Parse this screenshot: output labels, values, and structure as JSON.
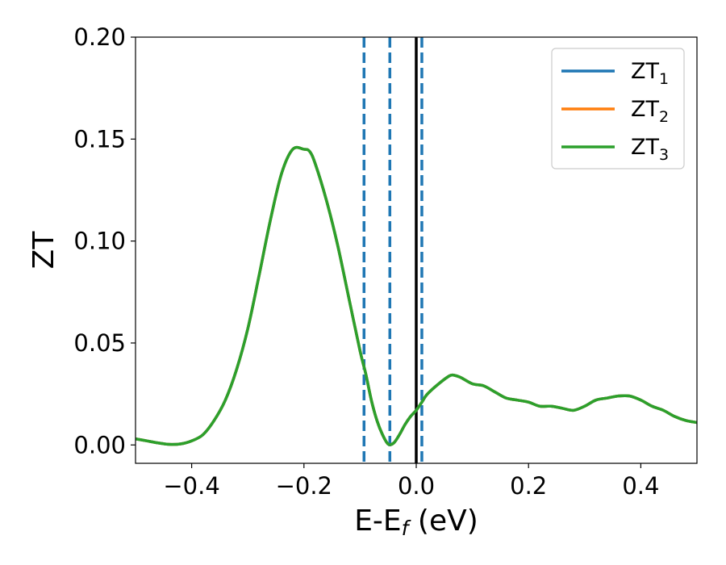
{
  "chart_data": {
    "type": "line",
    "xlabel": {
      "main": "E-E",
      "sub": "f",
      "tail": " (eV)"
    },
    "ylabel": "ZT",
    "xlim": [
      -0.5,
      0.5
    ],
    "ylim": [
      -0.009,
      0.2
    ],
    "x_ticks": [
      -0.4,
      -0.2,
      0.0,
      0.2,
      0.4
    ],
    "x_tick_labels": [
      "−0.4",
      "−0.2",
      "0.0",
      "0.2",
      "0.4"
    ],
    "y_ticks": [
      0.0,
      0.05,
      0.1,
      0.15,
      0.2
    ],
    "y_tick_labels": [
      "0.00",
      "0.05",
      "0.10",
      "0.15",
      "0.20"
    ],
    "grid": false,
    "legend_position": "top-right",
    "vlines": [
      {
        "x": -0.093,
        "style": "dashed",
        "color": "#1f77b4"
      },
      {
        "x": -0.047,
        "style": "dashed",
        "color": "#1f77b4"
      },
      {
        "x": 0.01,
        "style": "dashed",
        "color": "#1f77b4"
      },
      {
        "x": 0.0,
        "style": "solid",
        "color": "#000000"
      }
    ],
    "x": [
      -0.5,
      -0.48,
      -0.46,
      -0.44,
      -0.42,
      -0.4,
      -0.38,
      -0.36,
      -0.34,
      -0.32,
      -0.3,
      -0.28,
      -0.26,
      -0.24,
      -0.22,
      -0.2,
      -0.19,
      -0.18,
      -0.16,
      -0.14,
      -0.12,
      -0.1,
      -0.09,
      -0.08,
      -0.07,
      -0.06,
      -0.05,
      -0.04,
      -0.03,
      -0.02,
      -0.01,
      0.0,
      0.01,
      0.02,
      0.04,
      0.06,
      0.07,
      0.08,
      0.1,
      0.12,
      0.14,
      0.16,
      0.18,
      0.2,
      0.22,
      0.24,
      0.26,
      0.28,
      0.3,
      0.32,
      0.34,
      0.36,
      0.38,
      0.4,
      0.42,
      0.44,
      0.46,
      0.48,
      0.5
    ],
    "series": [
      {
        "name_main": "ZT",
        "name_sub": "1",
        "color": "#1f77b4",
        "values": [
          0.003,
          0.002,
          0.001,
          0.0003,
          0.0005,
          0.002,
          0.005,
          0.012,
          0.022,
          0.037,
          0.057,
          0.083,
          0.11,
          0.133,
          0.145,
          0.145,
          0.144,
          0.138,
          0.12,
          0.098,
          0.072,
          0.046,
          0.035,
          0.022,
          0.012,
          0.005,
          0.0004,
          0.001,
          0.005,
          0.01,
          0.014,
          0.017,
          0.021,
          0.025,
          0.03,
          0.034,
          0.034,
          0.033,
          0.03,
          0.029,
          0.026,
          0.023,
          0.022,
          0.021,
          0.019,
          0.019,
          0.018,
          0.017,
          0.019,
          0.022,
          0.023,
          0.024,
          0.024,
          0.022,
          0.019,
          0.017,
          0.014,
          0.012,
          0.011
        ]
      },
      {
        "name_main": "ZT",
        "name_sub": "2",
        "color": "#ff7f0e",
        "values": [
          0.003,
          0.002,
          0.001,
          0.0003,
          0.0005,
          0.002,
          0.005,
          0.012,
          0.022,
          0.037,
          0.057,
          0.083,
          0.11,
          0.133,
          0.145,
          0.145,
          0.144,
          0.138,
          0.12,
          0.098,
          0.072,
          0.046,
          0.035,
          0.022,
          0.012,
          0.005,
          0.0004,
          0.001,
          0.005,
          0.01,
          0.014,
          0.017,
          0.021,
          0.025,
          0.03,
          0.034,
          0.034,
          0.033,
          0.03,
          0.029,
          0.026,
          0.023,
          0.022,
          0.021,
          0.019,
          0.019,
          0.018,
          0.017,
          0.019,
          0.022,
          0.023,
          0.024,
          0.024,
          0.022,
          0.019,
          0.017,
          0.014,
          0.012,
          0.011
        ]
      },
      {
        "name_main": "ZT",
        "name_sub": "3",
        "color": "#2ca02c",
        "values": [
          0.003,
          0.002,
          0.001,
          0.0003,
          0.0005,
          0.002,
          0.005,
          0.012,
          0.022,
          0.037,
          0.057,
          0.083,
          0.11,
          0.133,
          0.145,
          0.145,
          0.144,
          0.138,
          0.12,
          0.098,
          0.072,
          0.046,
          0.035,
          0.022,
          0.012,
          0.005,
          0.0004,
          0.001,
          0.005,
          0.01,
          0.014,
          0.017,
          0.021,
          0.025,
          0.03,
          0.034,
          0.034,
          0.033,
          0.03,
          0.029,
          0.026,
          0.023,
          0.022,
          0.021,
          0.019,
          0.019,
          0.018,
          0.017,
          0.019,
          0.022,
          0.023,
          0.024,
          0.024,
          0.022,
          0.019,
          0.017,
          0.014,
          0.012,
          0.011
        ]
      }
    ]
  }
}
